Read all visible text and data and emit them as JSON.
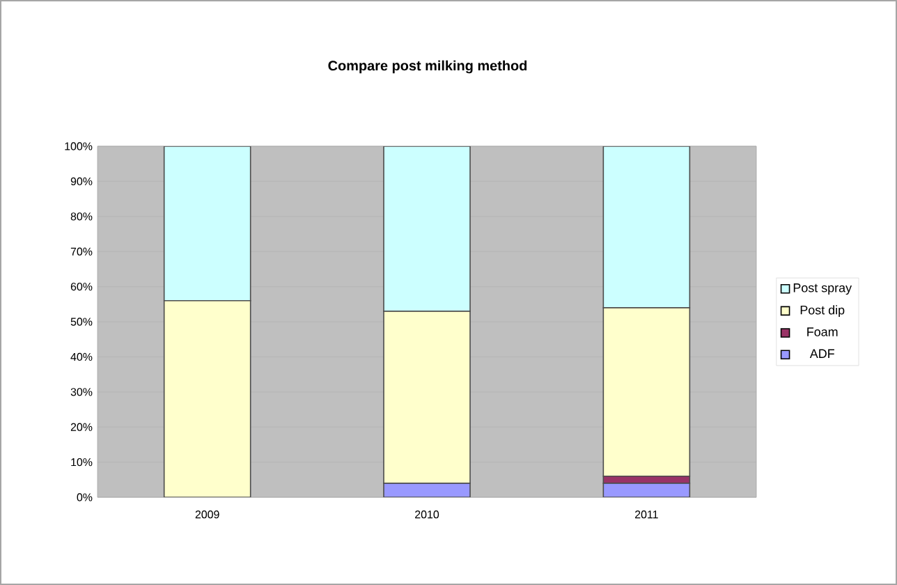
{
  "chart_data": {
    "type": "bar",
    "title": "Compare post milking method",
    "stacked": true,
    "categories": [
      "2009",
      "2010",
      "2011"
    ],
    "series": [
      {
        "name": "ADF",
        "color": "#9999ff",
        "values": [
          0,
          4,
          4
        ]
      },
      {
        "name": "Foam",
        "color": "#993366",
        "values": [
          0,
          0,
          2
        ]
      },
      {
        "name": "Post dip",
        "color": "#ffffcc",
        "values": [
          56,
          49,
          48
        ]
      },
      {
        "name": "Post spray",
        "color": "#ccffff",
        "values": [
          44,
          47,
          46
        ]
      }
    ],
    "ylim": [
      0,
      100
    ],
    "yticks": [
      {
        "value": 0,
        "label": "0%"
      },
      {
        "value": 10,
        "label": "10%"
      },
      {
        "value": 20,
        "label": "20%"
      },
      {
        "value": 30,
        "label": "30%"
      },
      {
        "value": 40,
        "label": "40%"
      },
      {
        "value": 50,
        "label": "50%"
      },
      {
        "value": 60,
        "label": "60%"
      },
      {
        "value": 70,
        "label": "70%"
      },
      {
        "value": 80,
        "label": "80%"
      },
      {
        "value": 90,
        "label": "90%"
      },
      {
        "value": 100,
        "label": "100%"
      }
    ],
    "grid": "y",
    "legend": "right"
  }
}
